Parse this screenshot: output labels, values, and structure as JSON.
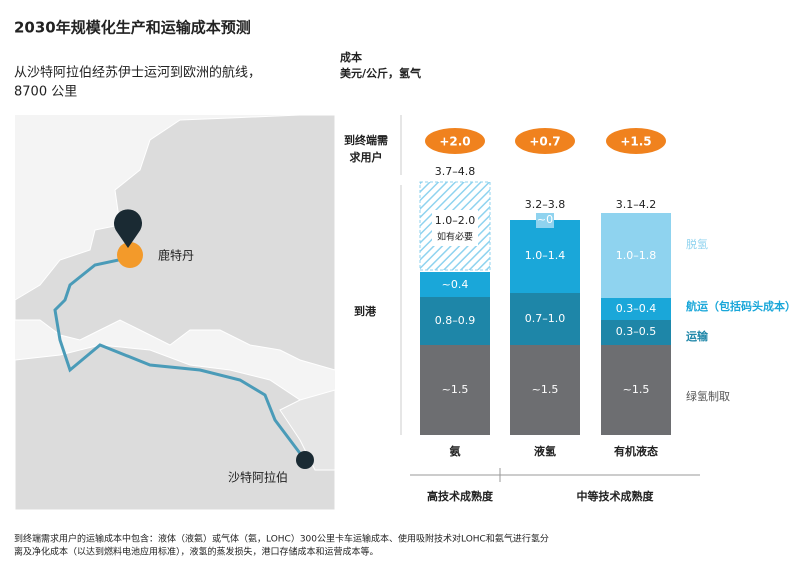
{
  "title": "2030年规模化生产和运输成本预测",
  "subtitle": [
    "从沙特阿拉伯经苏伊士运河到欧洲的航线，",
    "8700 公里"
  ],
  "map": {
    "origin_destination": "鹿特丹",
    "origin": "沙特阿拉伯"
  },
  "units": [
    "成本",
    "美元/公斤，氢气"
  ],
  "rows": [
    [
      "到终端需",
      "求用户"
    ],
    [
      "到港"
    ]
  ],
  "columns": [
    {
      "name": "氨",
      "delta": "+2.0",
      "total": "3.7–4.8",
      "segments": [
        {
          "label": "1.0–2.0",
          "note": "如有必要"
        },
        {
          "label": "~0.4"
        },
        {
          "label": "0.8–0.9"
        },
        {
          "label": "~1.5"
        }
      ]
    },
    {
      "name": "液氢",
      "delta": "+0.7",
      "total": "3.2–3.8",
      "segments": [
        {
          "label": "~0"
        },
        {
          "label": "1.0–1.4"
        },
        {
          "label": "0.7–1.0"
        },
        {
          "label": "~1.5"
        }
      ]
    },
    {
      "name": "有机液态",
      "delta": "+1.5",
      "total": "3.1–4.2",
      "segments": [
        {
          "label": "1.0–1.8"
        },
        {
          "label": "0.3–0.4"
        },
        {
          "label": "0.3–0.5"
        },
        {
          "label": "~1.5"
        }
      ]
    }
  ],
  "legend": [
    "脱氢",
    "航运（包括码头成本）",
    "运输",
    "绿氢制取"
  ],
  "maturity": [
    "高技术成熟度",
    "中等技术成熟度"
  ],
  "footnote": [
    "到终端需求用户的运输成本中包含：液体（液氨）或气体（氨，LOHC）300公里卡车运输成本、使用吸附技术对LOHC和氨气进行氢分",
    "离及净化成本（以达到燃料电池应用标准），液氢的蒸发损失，港口存储成本和运营成本等。"
  ]
}
